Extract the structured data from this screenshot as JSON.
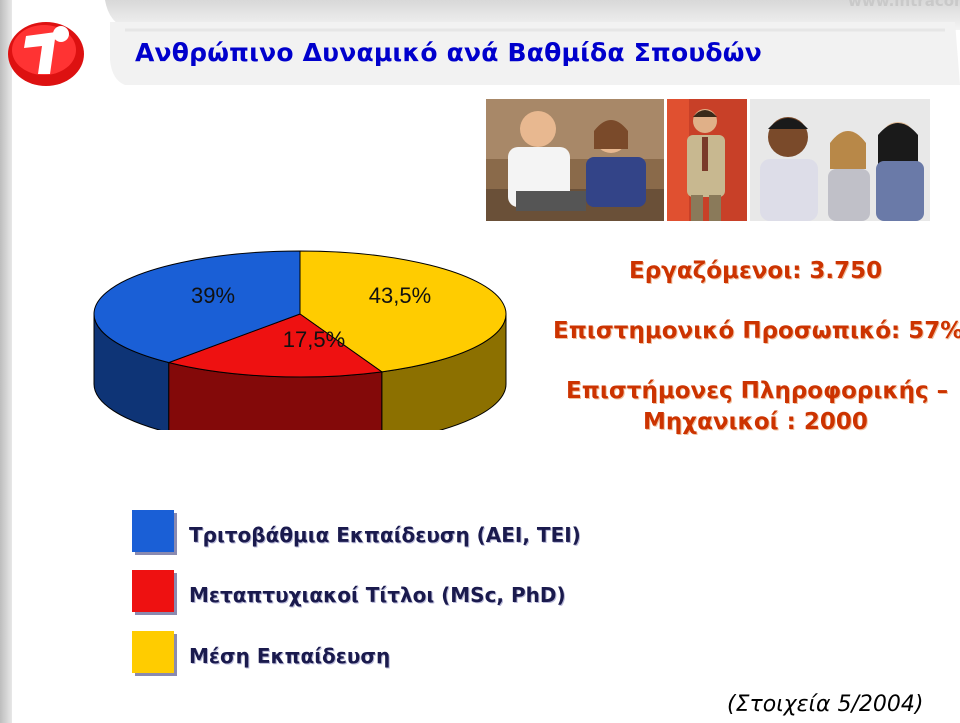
{
  "header": {
    "title": "Ανθρώπινο Δυναμικό ανά Βαθμίδα Σπουδών",
    "watermark": "www.intracom"
  },
  "stats": {
    "employees": "Εργαζόμενοι: 3.750",
    "scientific_staff": "Επιστημονικό Προσωπικό: 57%",
    "it_engineers_line1": "Επιστήμονες Πληροφορικής –",
    "it_engineers_line2": "Μηχανικοί : 2000"
  },
  "legend": [
    {
      "label": "Τριτοβάθμια Εκπαίδευση (ΑΕΙ, ΤΕΙ)",
      "color": "#1a5fd6"
    },
    {
      "label": "Μεταπτυχιακοί Τίτλοι (MSc, PhD)",
      "color": "#ee1111"
    },
    {
      "label": "Μέση Εκπαίδευση",
      "color": "#ffcc00"
    }
  ],
  "source": "(Στοιχεία 5/2004)",
  "colors": {
    "title": "#0000cc",
    "stat_text": "#cc3300",
    "blue": "#1a5fd6",
    "red": "#ee1111",
    "yellow": "#ffcc00"
  },
  "chart_data": {
    "type": "pie",
    "style": "3d",
    "slices": [
      {
        "category": "Τριτοβάθμια Εκπαίδευση (ΑΕΙ, ΤΕΙ)",
        "value": 39,
        "label": "39%",
        "color": "#1a5fd6"
      },
      {
        "category": "Μεταπτυχιακοί Τίτλοι (MSc, PhD)",
        "value": 17.5,
        "label": "17,5%",
        "color": "#ee1111"
      },
      {
        "category": "Μέση Εκπαίδευση",
        "value": 43.5,
        "label": "43,5%",
        "color": "#ffcc00"
      }
    ],
    "legend_position": "bottom-left"
  }
}
